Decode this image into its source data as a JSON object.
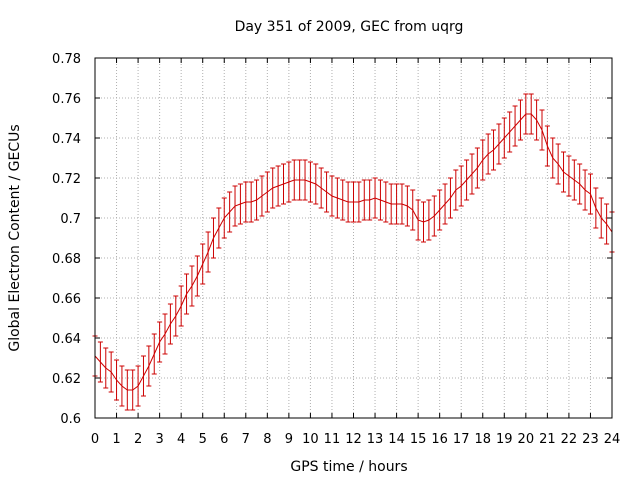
{
  "chart_data": {
    "type": "line",
    "title": "Day 351 of 2009, GEC from uqrg",
    "xlabel": "GPS time / hours",
    "ylabel": "Global Electron Content / GECUs",
    "xlim": [
      0,
      24
    ],
    "ylim": [
      0.6,
      0.78
    ],
    "grid": true,
    "x_ticks": [
      "0",
      "1",
      "2",
      "3",
      "4",
      "5",
      "6",
      "7",
      "8",
      "9",
      "10",
      "11",
      "12",
      "13",
      "14",
      "15",
      "16",
      "17",
      "18",
      "19",
      "20",
      "21",
      "22",
      "23",
      "24"
    ],
    "y_ticks": [
      "0.6",
      "0.62",
      "0.64",
      "0.66",
      "0.68",
      "0.7",
      "0.72",
      "0.74",
      "0.76",
      "0.78"
    ],
    "series": [
      {
        "name": "GEC",
        "color": "#cc0000",
        "error": 0.01,
        "x": [
          0,
          0.25,
          0.5,
          0.75,
          1,
          1.25,
          1.5,
          1.75,
          2,
          2.25,
          2.5,
          2.75,
          3,
          3.25,
          3.5,
          3.75,
          4,
          4.25,
          4.5,
          4.75,
          5,
          5.25,
          5.5,
          5.75,
          6,
          6.25,
          6.5,
          6.75,
          7,
          7.25,
          7.5,
          7.75,
          8,
          8.25,
          8.5,
          8.75,
          9,
          9.25,
          9.5,
          9.75,
          10,
          10.25,
          10.5,
          10.75,
          11,
          11.25,
          11.5,
          11.75,
          12,
          12.25,
          12.5,
          12.75,
          13,
          13.25,
          13.5,
          13.75,
          14,
          14.25,
          14.5,
          14.75,
          15,
          15.25,
          15.5,
          15.75,
          16,
          16.25,
          16.5,
          16.75,
          17,
          17.25,
          17.5,
          17.75,
          18,
          18.25,
          18.5,
          18.75,
          19,
          19.25,
          19.5,
          19.75,
          20,
          20.25,
          20.5,
          20.75,
          21,
          21.25,
          21.5,
          21.75,
          22,
          22.25,
          22.5,
          22.75,
          23,
          23.25,
          23.5,
          23.75,
          24
        ],
        "y": [
          0.631,
          0.628,
          0.625,
          0.623,
          0.619,
          0.616,
          0.614,
          0.614,
          0.616,
          0.621,
          0.626,
          0.632,
          0.638,
          0.642,
          0.647,
          0.651,
          0.656,
          0.662,
          0.666,
          0.671,
          0.677,
          0.683,
          0.69,
          0.695,
          0.7,
          0.703,
          0.706,
          0.707,
          0.708,
          0.708,
          0.709,
          0.711,
          0.713,
          0.715,
          0.716,
          0.717,
          0.718,
          0.719,
          0.719,
          0.719,
          0.718,
          0.717,
          0.715,
          0.713,
          0.711,
          0.71,
          0.709,
          0.708,
          0.708,
          0.708,
          0.709,
          0.709,
          0.71,
          0.709,
          0.708,
          0.707,
          0.707,
          0.707,
          0.706,
          0.704,
          0.699,
          0.698,
          0.699,
          0.701,
          0.704,
          0.707,
          0.71,
          0.714,
          0.716,
          0.719,
          0.722,
          0.725,
          0.729,
          0.732,
          0.734,
          0.737,
          0.74,
          0.743,
          0.746,
          0.749,
          0.752,
          0.752,
          0.749,
          0.744,
          0.736,
          0.73,
          0.727,
          0.723,
          0.721,
          0.719,
          0.717,
          0.714,
          0.712,
          0.705,
          0.7,
          0.697,
          0.693
        ]
      }
    ]
  }
}
